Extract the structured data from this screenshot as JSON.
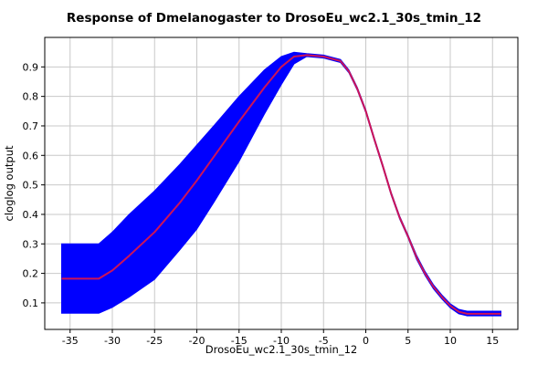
{
  "chart_data": {
    "type": "line",
    "title": "Response of Dmelanogaster to DrosoEu_wc2.1_30s_tmin_12",
    "xlabel": "DrosoEu_wc2.1_30s_tmin_12",
    "ylabel": "cloglog output",
    "xlim": [
      -38,
      18
    ],
    "ylim": [
      0.01,
      1
    ],
    "x_ticks": [
      -35,
      -30,
      -25,
      -20,
      -15,
      -10,
      -5,
      0,
      5,
      10,
      15
    ],
    "y_ticks": [
      0.1,
      0.2,
      0.3,
      0.4,
      0.5,
      0.6,
      0.7,
      0.8,
      0.9
    ],
    "grid": true,
    "colors": {
      "band": "#0000ff",
      "mean": "#cc1458",
      "grid": "#c8c8c8",
      "frame": "#000000"
    },
    "series": [
      {
        "x": [
          -36,
          -31.6,
          -30,
          -28,
          -25,
          -22,
          -20,
          -18,
          -15,
          -12,
          -10,
          -8.5,
          -7,
          -5,
          -3,
          -2,
          -1,
          0,
          1,
          2,
          3,
          4,
          5,
          6,
          7,
          8,
          9,
          10,
          11,
          12,
          14,
          16
        ],
        "y": [
          0.182,
          0.182,
          0.21,
          0.26,
          0.34,
          0.44,
          0.515,
          0.595,
          0.715,
          0.83,
          0.9,
          0.935,
          0.94,
          0.935,
          0.92,
          0.885,
          0.825,
          0.75,
          0.655,
          0.565,
          0.47,
          0.39,
          0.325,
          0.255,
          0.2,
          0.155,
          0.12,
          0.09,
          0.07,
          0.063,
          0.063,
          0.063
        ],
        "upper": [
          0.3,
          0.3,
          0.34,
          0.4,
          0.48,
          0.57,
          0.635,
          0.7,
          0.8,
          0.89,
          0.935,
          0.95,
          0.945,
          0.94,
          0.925,
          0.89,
          0.83,
          0.755,
          0.66,
          0.57,
          0.475,
          0.395,
          0.33,
          0.262,
          0.207,
          0.162,
          0.127,
          0.097,
          0.078,
          0.072,
          0.072,
          0.072
        ],
        "lower": [
          0.065,
          0.065,
          0.085,
          0.12,
          0.18,
          0.28,
          0.35,
          0.44,
          0.58,
          0.74,
          0.84,
          0.91,
          0.935,
          0.93,
          0.915,
          0.88,
          0.82,
          0.745,
          0.65,
          0.56,
          0.465,
          0.385,
          0.32,
          0.248,
          0.193,
          0.148,
          0.113,
          0.083,
          0.063,
          0.056,
          0.056,
          0.056
        ]
      }
    ]
  }
}
